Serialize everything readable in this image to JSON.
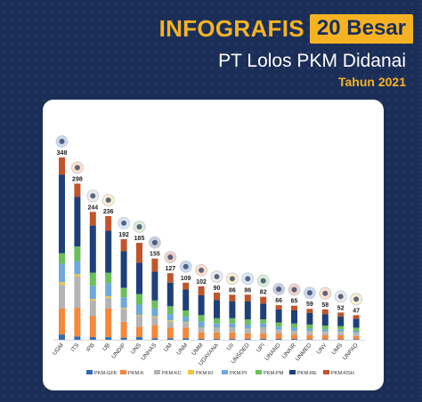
{
  "header": {
    "title_part1": "INFOGRAFIS",
    "title_part2": "20 Besar",
    "subtitle": "PT Lolos PKM Didanai",
    "year": "Tahun 2021"
  },
  "colors": {
    "background": "#1b2e57",
    "accent": "#f5b324",
    "card": "#ffffff"
  },
  "chart_data": {
    "type": "bar",
    "stacked": true,
    "title": "",
    "xlabel": "",
    "ylabel": "",
    "ylim": [
      0,
      348
    ],
    "grid": false,
    "legend_position": "bottom",
    "categories": [
      "UGM",
      "ITS",
      "IPB",
      "UB",
      "UNDIP",
      "UNS",
      "UNHAS",
      "UM",
      "UNM",
      "UMM",
      "UDAYANA",
      "UII",
      "UNSOED",
      "UPI",
      "UNAND",
      "UNAIR",
      "UNMED",
      "UNY",
      "UMS",
      "UNPAD"
    ],
    "totals": [
      348,
      298,
      244,
      236,
      192,
      185,
      155,
      127,
      109,
      102,
      90,
      86,
      86,
      82,
      66,
      65,
      59,
      58,
      52,
      47
    ],
    "series": [
      {
        "name": "PKM-GFK",
        "color": "#2f6db5",
        "values": [
          10,
          6,
          5,
          5,
          4,
          5,
          3,
          3,
          3,
          2,
          2,
          2,
          2,
          2,
          2,
          2,
          1,
          1,
          1,
          1
        ]
      },
      {
        "name": "PKM-K",
        "color": "#f5883a",
        "values": [
          50,
          55,
          40,
          55,
          30,
          20,
          25,
          20,
          20,
          12,
          12,
          12,
          10,
          10,
          10,
          8,
          8,
          8,
          8,
          6
        ]
      },
      {
        "name": "PKM-KC",
        "color": "#b4b4b4",
        "values": [
          45,
          60,
          30,
          20,
          25,
          20,
          15,
          12,
          10,
          8,
          8,
          8,
          8,
          10,
          6,
          6,
          6,
          5,
          5,
          5
        ]
      },
      {
        "name": "PKM-KI",
        "color": "#f2c53d",
        "values": [
          5,
          4,
          3,
          3,
          2,
          2,
          2,
          2,
          1,
          1,
          1,
          1,
          1,
          1,
          1,
          1,
          1,
          1,
          1,
          1
        ]
      },
      {
        "name": "PKM-PI",
        "color": "#6fa8dc",
        "values": [
          35,
          25,
          25,
          25,
          20,
          20,
          15,
          12,
          10,
          12,
          8,
          8,
          8,
          8,
          6,
          6,
          5,
          5,
          5,
          4
        ]
      },
      {
        "name": "PKM-PM",
        "color": "#6bbf59",
        "values": [
          20,
          28,
          25,
          20,
          18,
          20,
          15,
          15,
          12,
          12,
          10,
          10,
          10,
          8,
          8,
          8,
          8,
          7,
          6,
          6
        ]
      },
      {
        "name": "PKM-RE",
        "color": "#1f3f7a",
        "values": [
          150,
          95,
          90,
          80,
          70,
          60,
          55,
          45,
          40,
          38,
          35,
          32,
          34,
          30,
          25,
          25,
          22,
          22,
          18,
          17
        ]
      },
      {
        "name": "PKM-RSH",
        "color": "#c0552b",
        "values": [
          33,
          25,
          26,
          28,
          23,
          38,
          25,
          18,
          13,
          17,
          14,
          13,
          13,
          13,
          8,
          9,
          8,
          9,
          8,
          7
        ]
      }
    ]
  }
}
